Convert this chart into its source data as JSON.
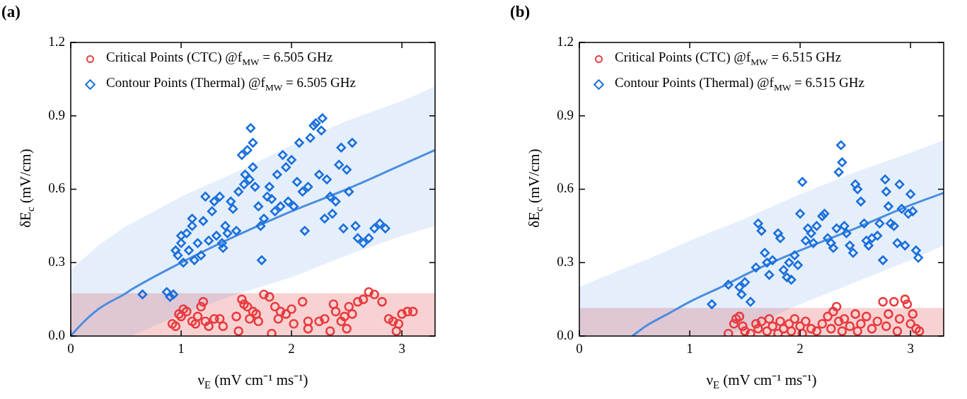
{
  "chart_data": [
    {
      "type": "scatter",
      "title": "(a)",
      "xlabel": "ν$_{E}$ (mV cm⁻¹ ms⁻¹)",
      "ylabel": "δE$_{c}$ (mV/cm)",
      "xlim": [
        0,
        3.3
      ],
      "xticks": [
        0,
        1,
        2,
        3
      ],
      "ylim": [
        0,
        1.2
      ],
      "yticks": [
        {
          "value": 0,
          "label": "0.0"
        },
        0.3,
        0.6,
        0.9,
        1.2
      ],
      "legend": "top left",
      "bands": [
        {
          "axis": "y",
          "from": 0,
          "to": 0.175,
          "color": "#f8d2d2"
        }
      ],
      "series": [
        {
          "type": "scatter",
          "marker": "circle",
          "name": "Critical Points (CTC) @f$_{MW}$ =  6.505 GHz",
          "color": "#e83b3f",
          "x": [
            0.92,
            0.95,
            0.98,
            1.0,
            1.02,
            1.05,
            1.1,
            1.13,
            1.15,
            1.18,
            1.2,
            1.22,
            1.25,
            1.3,
            1.35,
            1.38,
            1.5,
            1.52,
            1.55,
            1.57,
            1.6,
            1.62,
            1.65,
            1.68,
            1.7,
            1.75,
            1.8,
            1.82,
            1.85,
            1.88,
            1.9,
            1.95,
            2.0,
            2.02,
            2.1,
            2.15,
            2.15,
            2.25,
            2.3,
            2.35,
            2.38,
            2.4,
            2.45,
            2.48,
            2.5,
            2.52,
            2.55,
            2.6,
            2.65,
            2.7,
            2.75,
            2.82,
            2.88,
            2.92,
            2.95,
            2.97,
            3.0,
            3.05,
            3.1
          ],
          "values": [
            0.05,
            0.04,
            0.09,
            0.08,
            0.11,
            0.1,
            0.06,
            0.05,
            0.08,
            0.12,
            0.14,
            0.06,
            0.04,
            0.07,
            0.07,
            0.04,
            0.08,
            0.02,
            0.15,
            0.13,
            0.12,
            0.07,
            0.1,
            0.09,
            0.06,
            0.17,
            0.16,
            0.01,
            0.12,
            0.07,
            0.1,
            0.09,
            0.11,
            0.05,
            0.14,
            0.06,
            0.03,
            0.06,
            0.07,
            0.02,
            0.13,
            0.1,
            0.06,
            0.08,
            0.03,
            0.12,
            0.09,
            0.14,
            0.15,
            0.18,
            0.17,
            0.14,
            0.07,
            0.06,
            0.02,
            0.05,
            0.09,
            0.1,
            0.1
          ]
        },
        {
          "type": "scatter",
          "marker": "diamond",
          "name": "Contour Points (Thermal) @f$_{MW}$ =  6.505 GHz",
          "color": "#1a6fdc",
          "x": [
            0.65,
            0.87,
            0.9,
            0.93,
            0.95,
            0.97,
            1.0,
            1.0,
            1.02,
            1.05,
            1.07,
            1.1,
            1.1,
            1.12,
            1.15,
            1.18,
            1.2,
            1.22,
            1.25,
            1.28,
            1.3,
            1.32,
            1.35,
            1.37,
            1.38,
            1.4,
            1.42,
            1.45,
            1.47,
            1.5,
            1.52,
            1.55,
            1.57,
            1.58,
            1.6,
            1.62,
            1.63,
            1.65,
            1.65,
            1.67,
            1.7,
            1.72,
            1.73,
            1.75,
            1.78,
            1.8,
            1.82,
            1.85,
            1.87,
            1.9,
            1.92,
            1.95,
            1.97,
            2.0,
            2.02,
            2.05,
            2.07,
            2.1,
            2.12,
            2.15,
            2.17,
            2.2,
            2.22,
            2.25,
            2.27,
            2.28,
            2.3,
            2.32,
            2.35,
            2.37,
            2.4,
            2.43,
            2.45,
            2.47,
            2.5,
            2.52,
            2.55,
            2.58,
            2.6,
            2.65,
            2.7,
            2.75,
            2.8,
            2.85
          ],
          "values": [
            0.17,
            0.18,
            0.16,
            0.17,
            0.35,
            0.33,
            0.38,
            0.41,
            0.3,
            0.42,
            0.35,
            0.45,
            0.48,
            0.31,
            0.38,
            0.33,
            0.47,
            0.57,
            0.39,
            0.51,
            0.55,
            0.41,
            0.57,
            0.38,
            0.36,
            0.45,
            0.42,
            0.55,
            0.52,
            0.43,
            0.59,
            0.74,
            0.62,
            0.66,
            0.76,
            0.64,
            0.85,
            0.69,
            0.79,
            0.61,
            0.53,
            0.45,
            0.31,
            0.48,
            0.57,
            0.61,
            0.56,
            0.51,
            0.66,
            0.53,
            0.74,
            0.69,
            0.55,
            0.72,
            0.53,
            0.63,
            0.79,
            0.59,
            0.43,
            0.61,
            0.81,
            0.86,
            0.87,
            0.66,
            0.84,
            0.89,
            0.48,
            0.64,
            0.57,
            0.5,
            0.55,
            0.7,
            0.77,
            0.44,
            0.68,
            0.59,
            0.79,
            0.45,
            0.4,
            0.38,
            0.4,
            0.44,
            0.46,
            0.44
          ]
        },
        {
          "type": "line",
          "color": "#4a8ee0",
          "x": [
            0,
            0.1,
            0.25,
            0.5,
            0.55,
            1,
            1.5,
            2,
            2.5,
            3,
            3.3
          ],
          "values": [
            0,
            0.05,
            0.11,
            0.175,
            0.19,
            0.3,
            0.41,
            0.51,
            0.6,
            0.7,
            0.76
          ],
          "lower": [
            0,
            0,
            0,
            0,
            0,
            0.09,
            0.17,
            0.24,
            0.33,
            0.41,
            0.45
          ],
          "upper": [
            0.27,
            0.31,
            0.37,
            0.45,
            0.46,
            0.57,
            0.67,
            0.78,
            0.88,
            0.96,
            1.02
          ]
        }
      ]
    },
    {
      "type": "scatter",
      "title": "(b)",
      "xlabel": "ν$_{E}$ (mV cm⁻¹ ms⁻¹)",
      "ylabel": "δE$_{c}$ (mV/cm)",
      "xlim": [
        0,
        3.3
      ],
      "xticks": [
        0,
        1,
        2,
        3
      ],
      "ylim": [
        0,
        1.2
      ],
      "yticks": [
        {
          "value": 0,
          "label": "0.0"
        },
        0.3,
        0.6,
        0.9,
        1.2
      ],
      "legend": "top left",
      "bands": [
        {
          "axis": "y",
          "from": 0,
          "to": 0.115,
          "color": "#f8d2d2"
        }
      ],
      "series": [
        {
          "type": "scatter",
          "marker": "circle",
          "name": "Critical Points (CTC) @f$_{MW}$ =  6.515 GHz",
          "color": "#e83b3f",
          "x": [
            1.35,
            1.4,
            1.42,
            1.45,
            1.48,
            1.5,
            1.55,
            1.6,
            1.62,
            1.65,
            1.7,
            1.72,
            1.75,
            1.8,
            1.82,
            1.85,
            1.9,
            1.92,
            1.95,
            2.0,
            2.02,
            2.05,
            2.1,
            2.15,
            2.2,
            2.25,
            2.28,
            2.3,
            2.33,
            2.35,
            2.38,
            2.4,
            2.45,
            2.5,
            2.52,
            2.55,
            2.6,
            2.65,
            2.7,
            2.75,
            2.78,
            2.8,
            2.85,
            2.88,
            2.9,
            2.95,
            2.97,
            3.0,
            3.02,
            3.05,
            3.08
          ],
          "values": [
            0.01,
            0.05,
            0.07,
            0.08,
            0.04,
            0.02,
            0.01,
            0.05,
            0.03,
            0.06,
            0.02,
            0.07,
            0.04,
            0.01,
            0.06,
            0.03,
            0.05,
            0.02,
            0.07,
            0.04,
            0.01,
            0.06,
            0.03,
            0.02,
            0.05,
            0.08,
            0.03,
            0.1,
            0.12,
            0.06,
            0.02,
            0.07,
            0.04,
            0.09,
            0.02,
            0.05,
            0.08,
            0.03,
            0.06,
            0.14,
            0.04,
            0.09,
            0.14,
            0.02,
            0.07,
            0.15,
            0.13,
            0.05,
            0.09,
            0.03,
            0.02
          ]
        },
        {
          "type": "scatter",
          "marker": "diamond",
          "name": "Contour Points (Thermal) @f$_{MW}$ =  6.515 GHz",
          "color": "#1a6fdc",
          "x": [
            1.2,
            1.35,
            1.45,
            1.47,
            1.5,
            1.55,
            1.6,
            1.62,
            1.65,
            1.68,
            1.7,
            1.72,
            1.75,
            1.8,
            1.82,
            1.85,
            1.88,
            1.9,
            1.92,
            1.95,
            1.98,
            2.0,
            2.02,
            2.05,
            2.07,
            2.1,
            2.12,
            2.15,
            2.2,
            2.22,
            2.25,
            2.28,
            2.3,
            2.33,
            2.35,
            2.37,
            2.38,
            2.4,
            2.42,
            2.45,
            2.48,
            2.5,
            2.52,
            2.55,
            2.58,
            2.6,
            2.62,
            2.65,
            2.7,
            2.72,
            2.75,
            2.77,
            2.78,
            2.8,
            2.82,
            2.85,
            2.88,
            2.9,
            2.92,
            2.95,
            2.98,
            3.0,
            3.02,
            3.05,
            3.07
          ],
          "values": [
            0.13,
            0.21,
            0.2,
            0.17,
            0.22,
            0.14,
            0.28,
            0.46,
            0.43,
            0.34,
            0.3,
            0.25,
            0.31,
            0.42,
            0.4,
            0.27,
            0.24,
            0.3,
            0.23,
            0.33,
            0.29,
            0.5,
            0.63,
            0.39,
            0.44,
            0.42,
            0.38,
            0.45,
            0.49,
            0.5,
            0.4,
            0.38,
            0.36,
            0.44,
            0.67,
            0.78,
            0.71,
            0.45,
            0.42,
            0.37,
            0.34,
            0.62,
            0.6,
            0.55,
            0.46,
            0.39,
            0.37,
            0.4,
            0.41,
            0.46,
            0.31,
            0.64,
            0.59,
            0.53,
            0.46,
            0.45,
            0.38,
            0.62,
            0.52,
            0.37,
            0.5,
            0.58,
            0.51,
            0.35,
            0.32
          ]
        },
        {
          "type": "line",
          "color": "#4a8ee0",
          "x": [
            0,
            0.1,
            0.48,
            0.6,
            0.8,
            1,
            1.33,
            1.5,
            2,
            2.5,
            3,
            3.3
          ],
          "values": [
            null,
            null,
            0,
            0.04,
            0.09,
            0.14,
            0.21,
            0.25,
            0.35,
            0.44,
            0.535,
            0.585
          ],
          "lower": [
            0,
            0,
            0,
            0,
            0,
            0,
            0,
            0.03,
            0.13,
            0.22,
            0.31,
            0.37
          ],
          "upper": [
            0.2,
            0.22,
            0.29,
            0.31,
            0.35,
            0.39,
            0.45,
            0.48,
            0.58,
            0.67,
            0.75,
            0.8
          ]
        }
      ]
    }
  ]
}
